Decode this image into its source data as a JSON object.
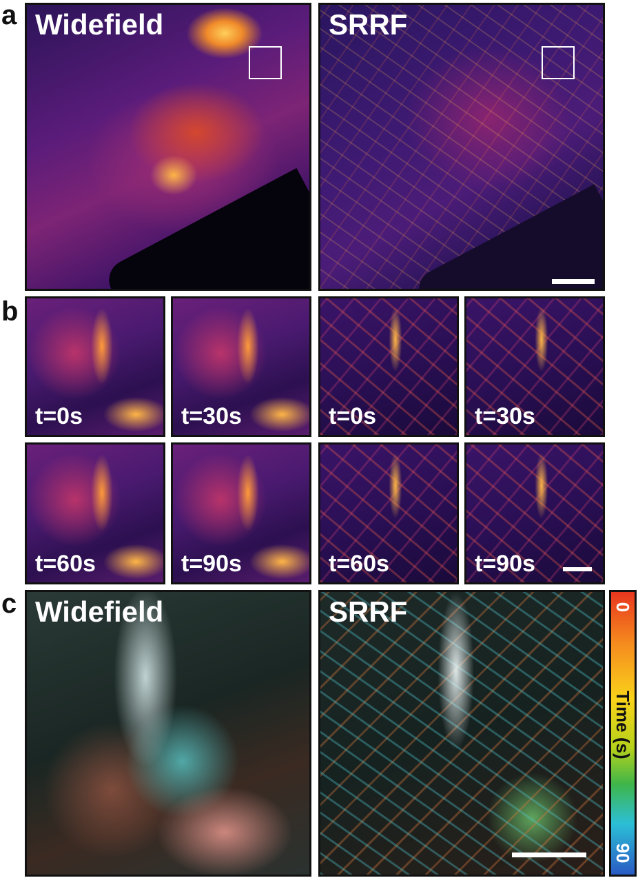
{
  "panel_a": {
    "letter": "a",
    "left_label": "Widefield",
    "right_label": "SRRF"
  },
  "panel_b": {
    "letter": "b",
    "widefield_times": [
      "t=0s",
      "t=30s",
      "t=60s",
      "t=90s"
    ],
    "srrf_times": [
      "t=0s",
      "t=30s",
      "t=60s",
      "t=90s"
    ]
  },
  "panel_c": {
    "letter": "c",
    "left_label": "Widefield",
    "right_label": "SRRF",
    "colorbar": {
      "title": "Time (s)",
      "min_label": "0",
      "max_label": "90",
      "colors": [
        "#e8361f",
        "#f58a1e",
        "#f9d31a",
        "#b7d21a",
        "#3fb54a",
        "#2bbfd6",
        "#2a5bc4"
      ]
    }
  }
}
